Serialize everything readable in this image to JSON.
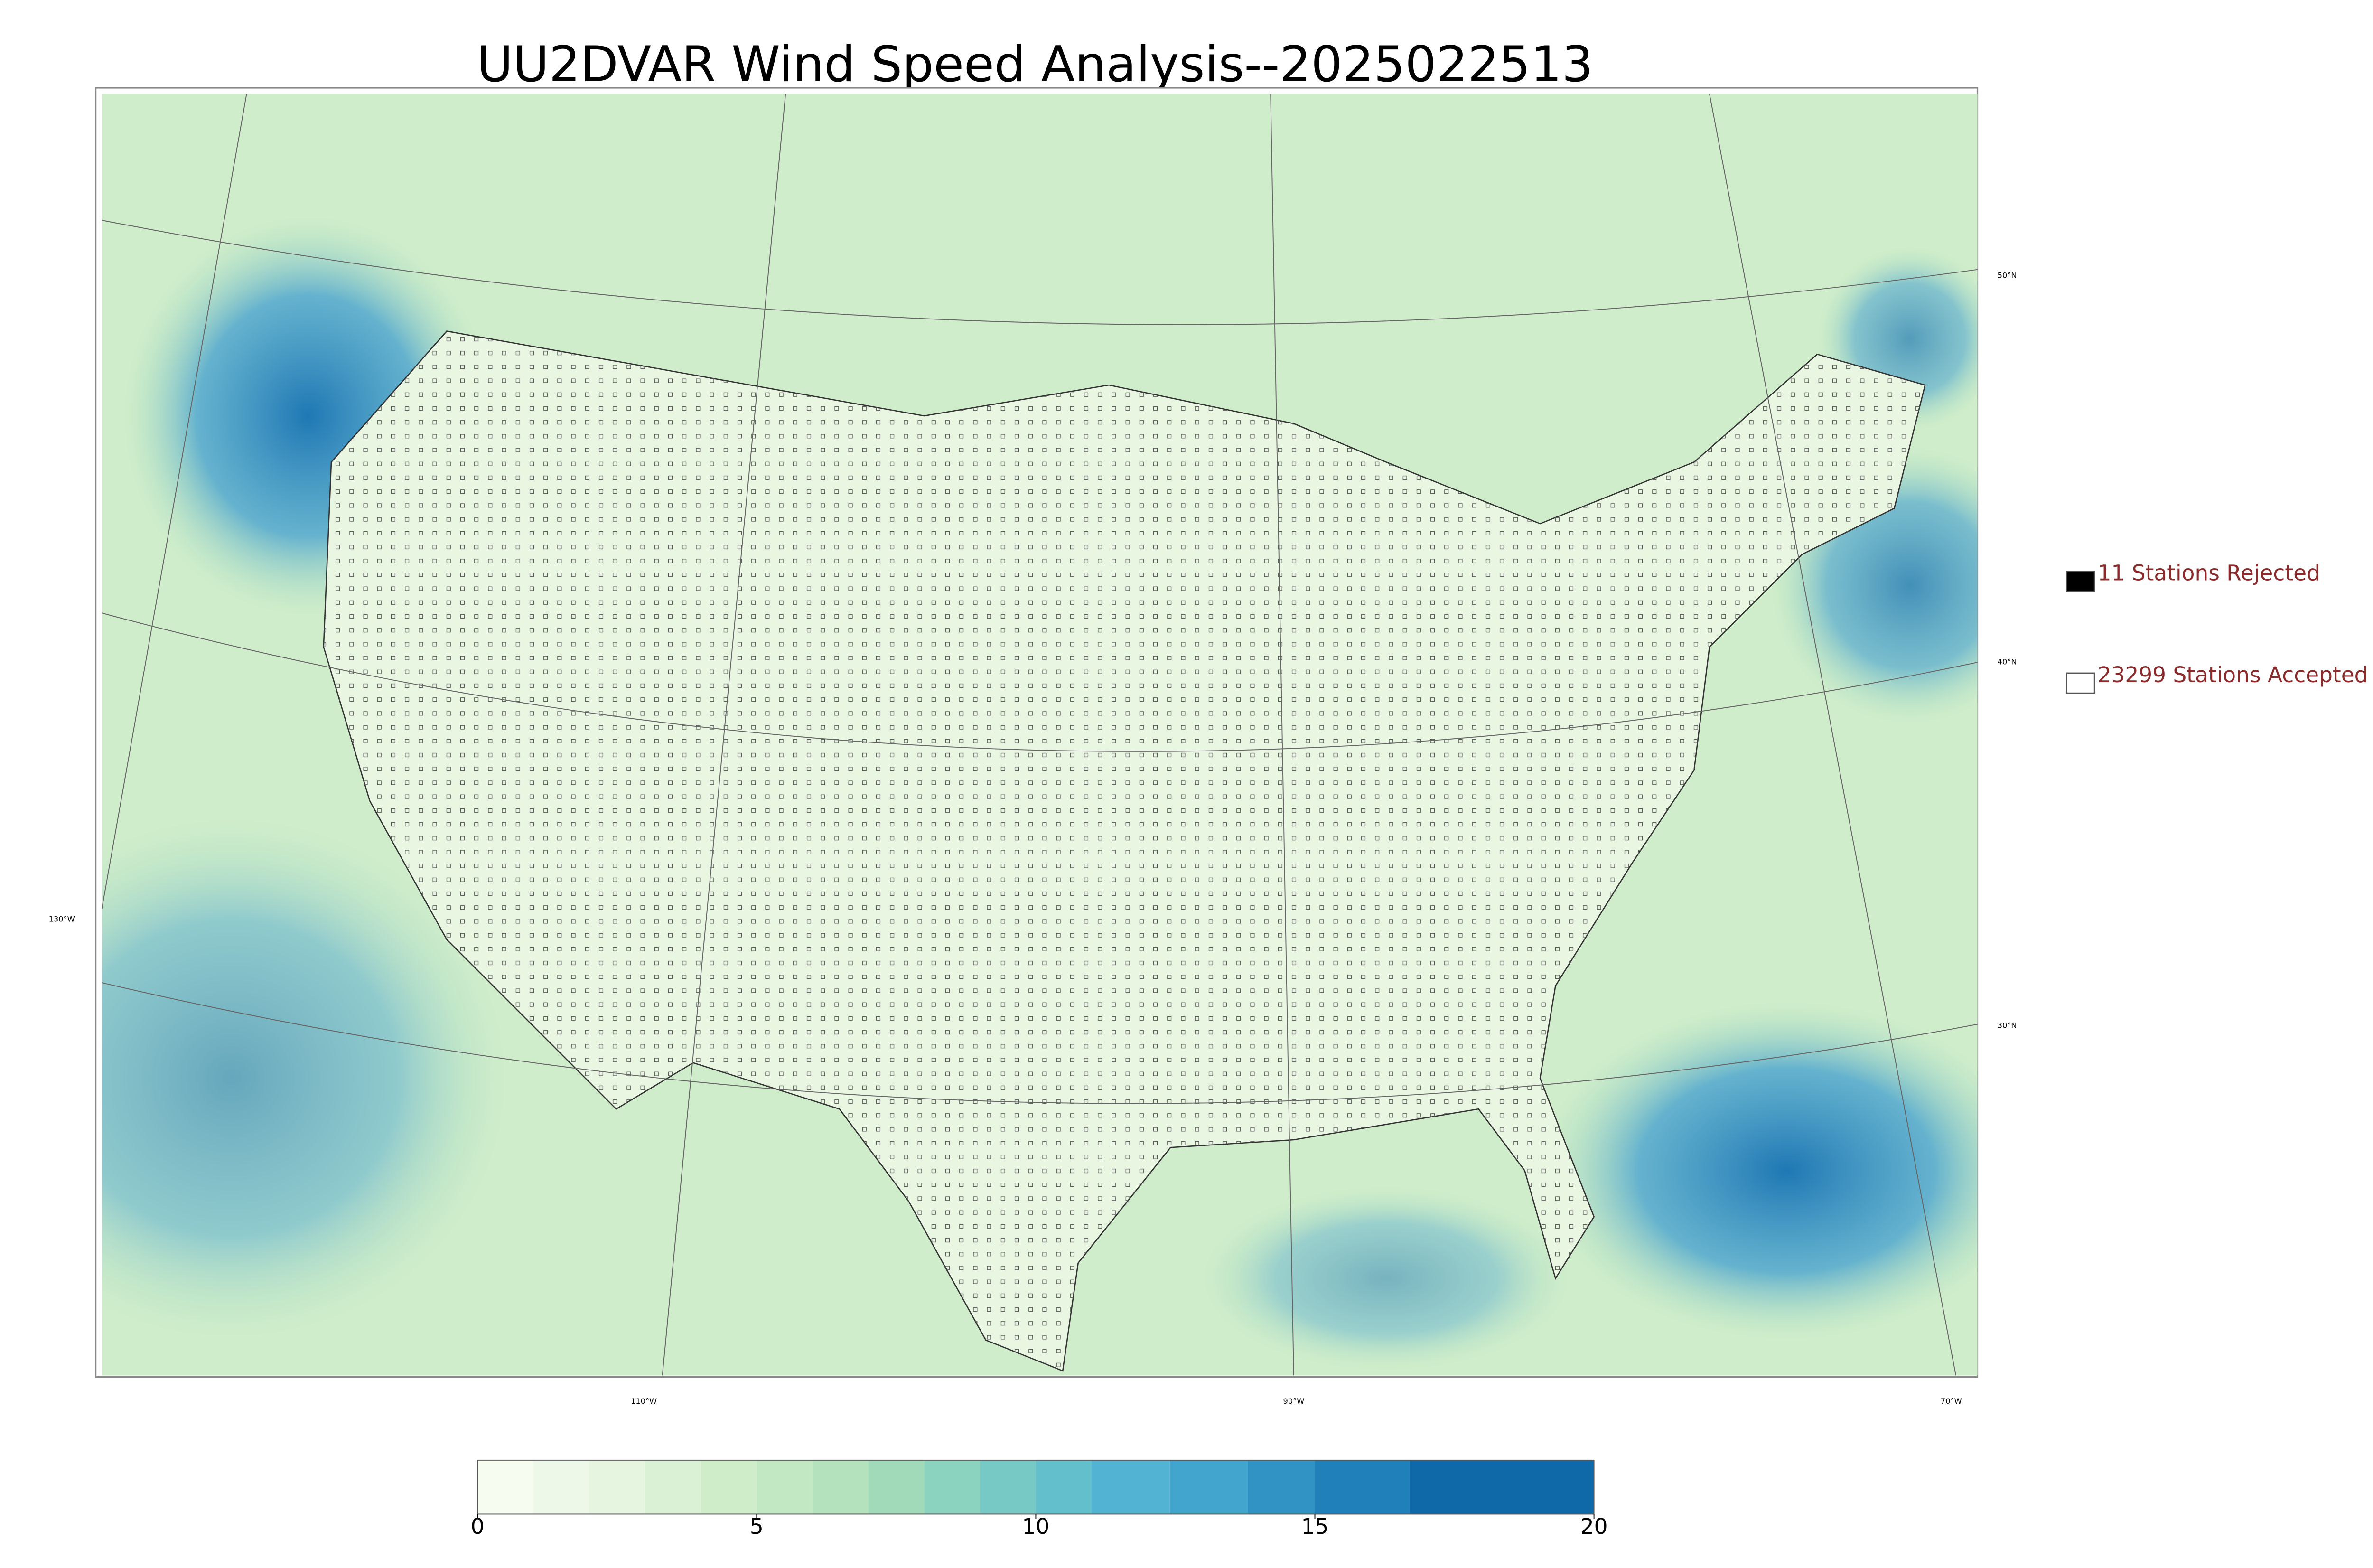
{
  "title": "UU2DVAR Wind Speed Analysis--2025022513",
  "legend": [
    {
      "label": "11 Stations Rejected",
      "color": "#000000"
    },
    {
      "label": "23299 Stations Accepted",
      "color": "#ffffff"
    }
  ],
  "latitude_labels": [
    "50°N",
    "40°N",
    "30°N"
  ],
  "longitude_labels": [
    "130°W",
    "110°W",
    "90°W",
    "70°W"
  ],
  "colorbar": {
    "range": [
      0,
      20
    ],
    "ticks": [
      0,
      5,
      10,
      15,
      20
    ],
    "levels": [
      0,
      1,
      2,
      3,
      4,
      5,
      6,
      7,
      8,
      9,
      10,
      11,
      12.4,
      13.8,
      15,
      16.7,
      20
    ],
    "colors": [
      "#f7fcf0",
      "#eef8e8",
      "#e5f5df",
      "#dbf1d5",
      "#d0edca",
      "#c2e8c3",
      "#b3e2bd",
      "#a0dab8",
      "#8bd2bf",
      "#77c9c6",
      "#64bfcc",
      "#52b3d2",
      "#41a5ce",
      "#3193c3",
      "#2080b9",
      "#0f68a8"
    ]
  }
}
